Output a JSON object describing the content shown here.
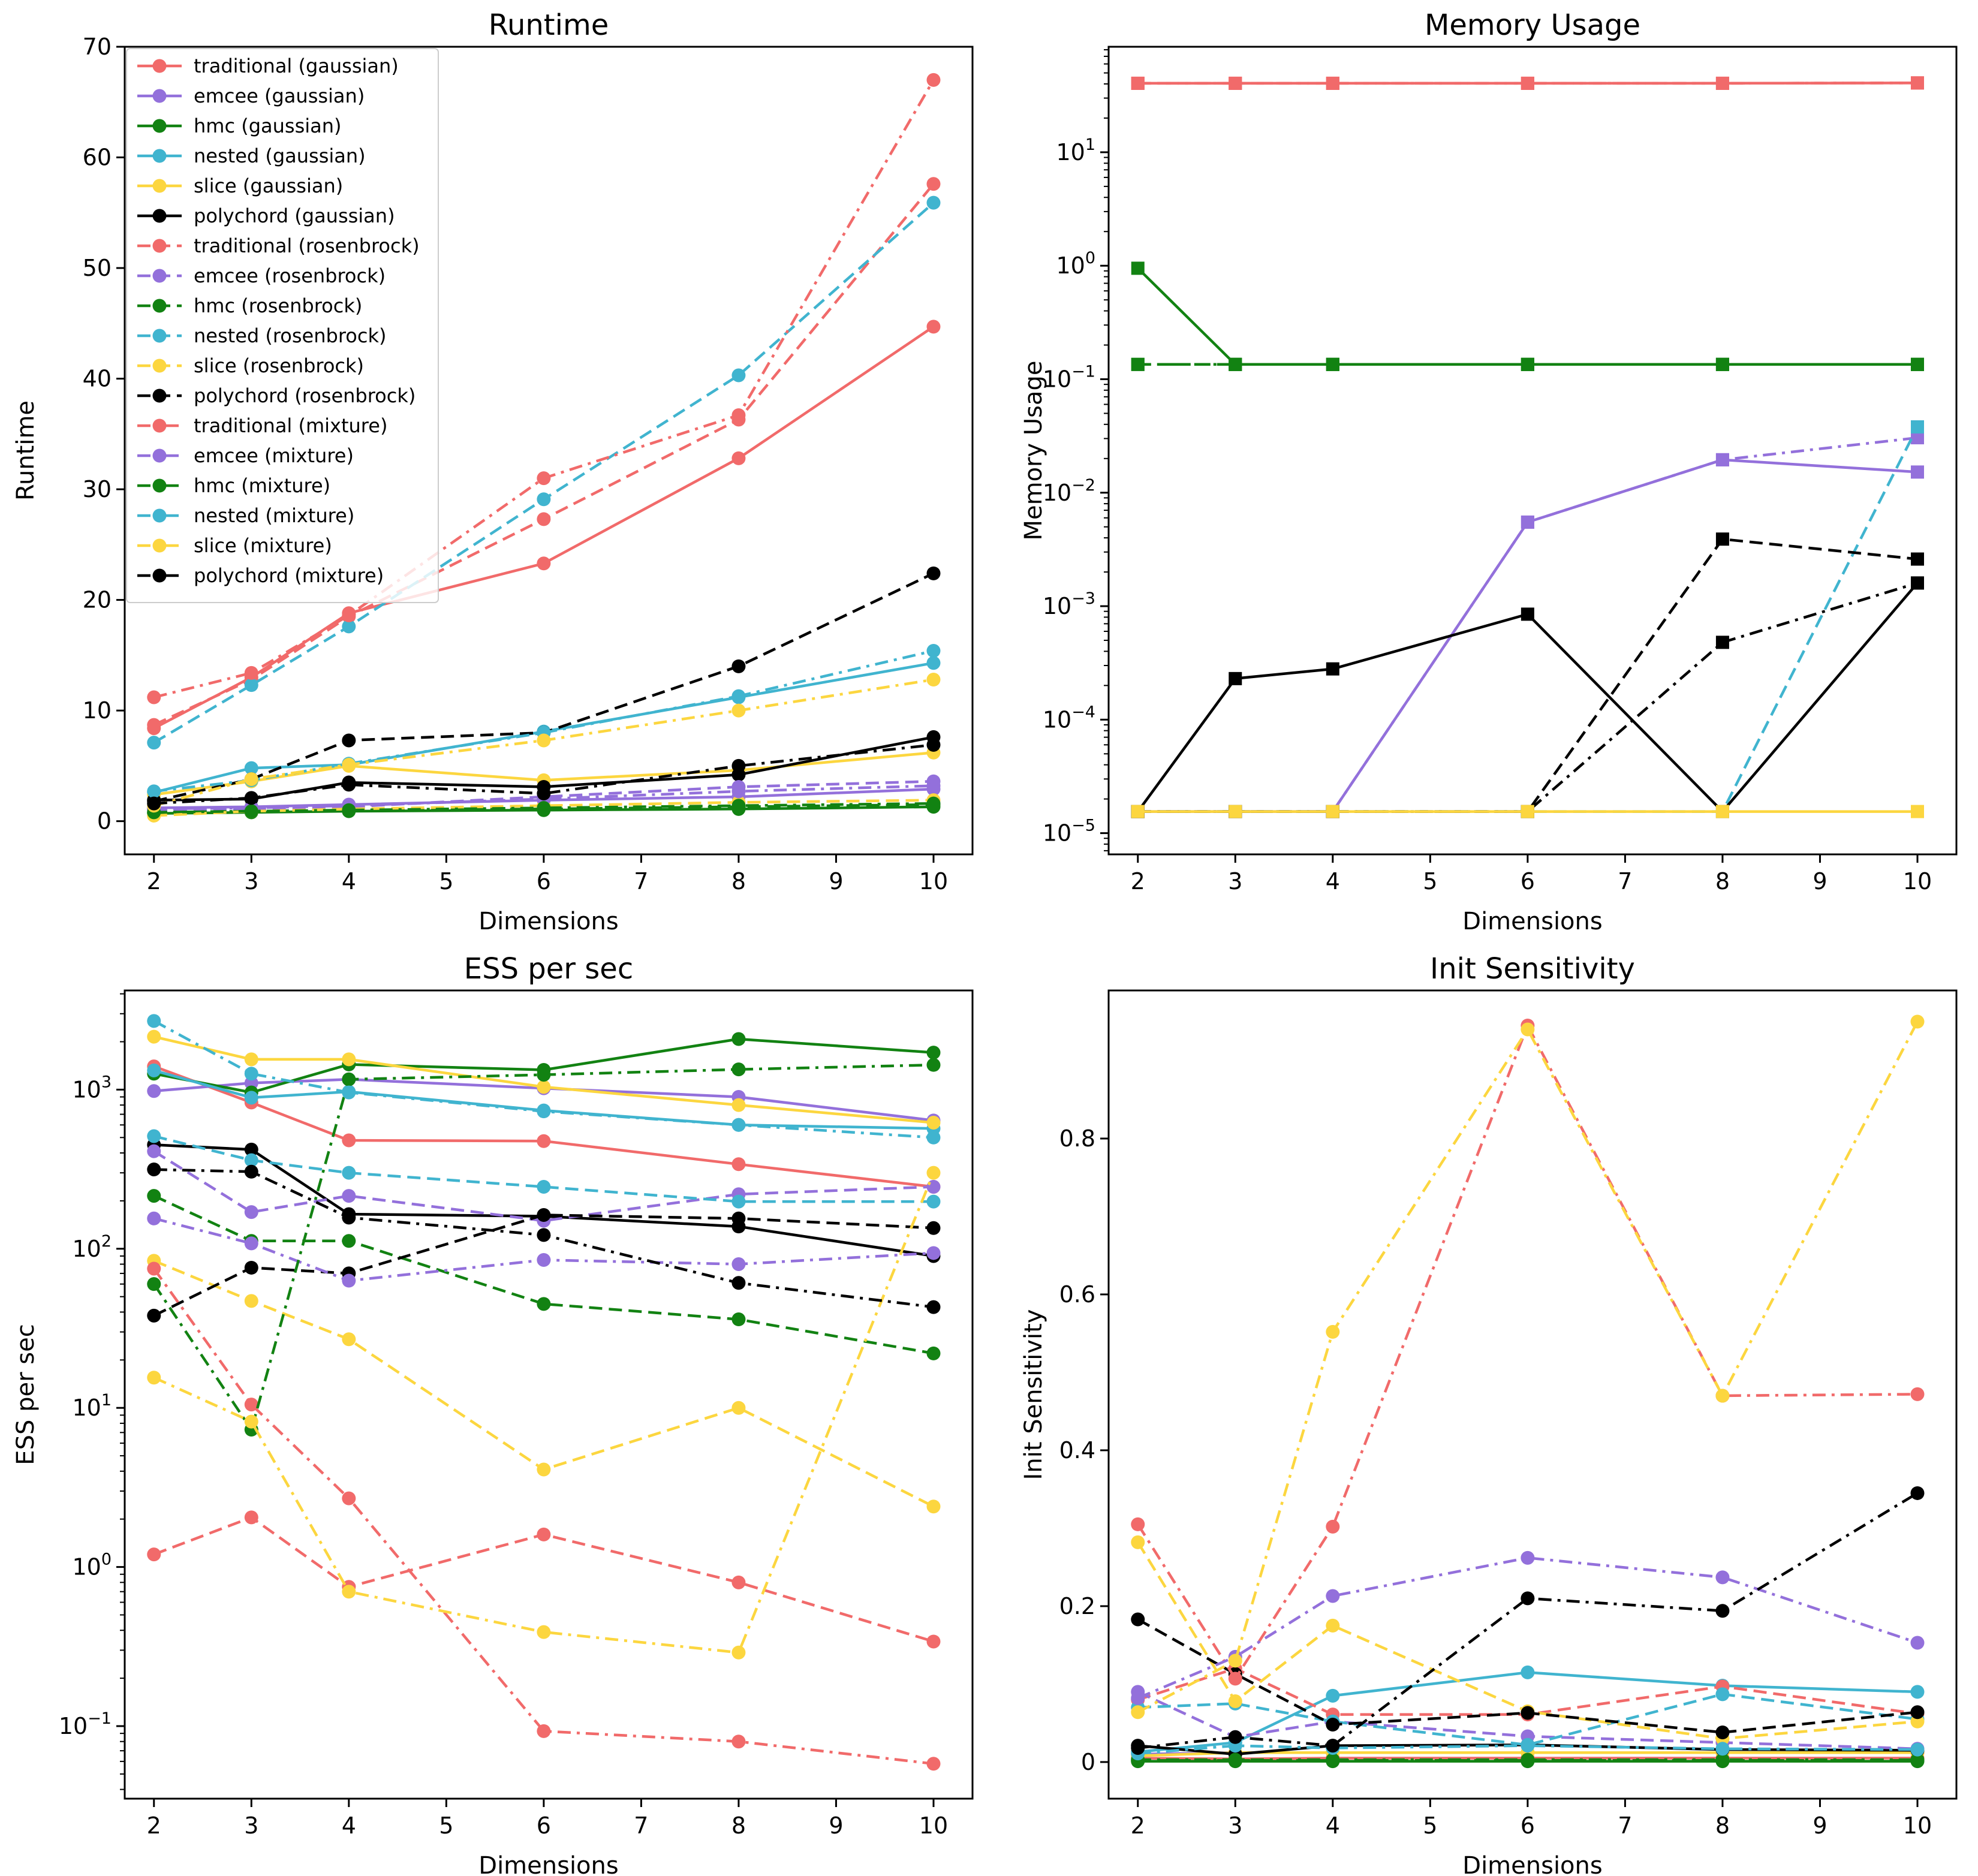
{
  "figure": {
    "background": "#ffffff"
  },
  "colors": {
    "traditional": "#f16a6a",
    "emcee": "#9370db",
    "hmc": "#128212",
    "nested": "#40b4cf",
    "slice": "#fcd63f",
    "polychord": "#000000"
  },
  "chart_data": [
    {
      "type": "line",
      "title": "Runtime",
      "xlabel": "Dimensions",
      "ylabel": "Runtime",
      "yscale": "linear",
      "xlim": [
        1.7,
        10.4
      ],
      "ylim": [
        -3,
        70
      ],
      "xticks": [
        2,
        3,
        4,
        5,
        6,
        7,
        8,
        9,
        10
      ],
      "yticks": [
        0,
        10,
        20,
        30,
        40,
        50,
        60,
        70
      ],
      "legend": "top-left",
      "x": [
        2,
        3,
        4,
        6,
        8,
        10
      ],
      "series": [
        {
          "name": "traditional (gaussian)",
          "values": [
            8.4,
            13.0,
            18.8,
            23.3,
            32.8,
            44.7
          ]
        },
        {
          "name": "emcee (gaussian)",
          "values": [
            1.2,
            1.3,
            1.5,
            1.9,
            2.2,
            2.9
          ]
        },
        {
          "name": "hmc (gaussian)",
          "values": [
            0.7,
            0.8,
            0.9,
            1.0,
            1.1,
            1.3
          ]
        },
        {
          "name": "nested (gaussian)",
          "values": [
            2.6,
            4.8,
            5.1,
            8.1,
            11.2,
            14.3
          ]
        },
        {
          "name": "slice (gaussian)",
          "values": [
            2.4,
            3.6,
            5.0,
            3.7,
            4.6,
            6.2
          ]
        },
        {
          "name": "polychord (gaussian)",
          "values": [
            1.9,
            2.0,
            3.5,
            3.1,
            4.2,
            7.6
          ]
        },
        {
          "name": "traditional (rosenbrock)",
          "values": [
            8.7,
            12.8,
            18.5,
            27.3,
            36.3,
            57.6
          ]
        },
        {
          "name": "emcee (rosenbrock)",
          "values": [
            1.0,
            1.1,
            1.3,
            2.2,
            3.1,
            3.6
          ]
        },
        {
          "name": "hmc (rosenbrock)",
          "values": [
            0.8,
            0.9,
            1.0,
            1.1,
            1.3,
            1.5
          ]
        },
        {
          "name": "nested (rosenbrock)",
          "values": [
            7.1,
            12.3,
            17.6,
            29.1,
            40.3,
            55.9
          ]
        },
        {
          "name": "slice (rosenbrock)",
          "values": [
            0.5,
            0.9,
            1.1,
            1.4,
            1.7,
            1.9
          ]
        },
        {
          "name": "polychord (rosenbrock)",
          "values": [
            1.8,
            3.8,
            7.3,
            8.0,
            14.0,
            22.4
          ]
        },
        {
          "name": "traditional (mixture)",
          "values": [
            11.2,
            13.4,
            18.6,
            31.0,
            36.7,
            67.0
          ]
        },
        {
          "name": "emcee (mixture)",
          "values": [
            1.1,
            1.2,
            1.4,
            2.0,
            2.7,
            3.2
          ]
        },
        {
          "name": "hmc (mixture)",
          "values": [
            0.8,
            0.9,
            1.0,
            1.2,
            1.4,
            1.6
          ]
        },
        {
          "name": "nested (mixture)",
          "values": [
            2.7,
            3.7,
            5.2,
            8.0,
            11.3,
            15.4
          ]
        },
        {
          "name": "slice (mixture)",
          "values": [
            1.4,
            3.8,
            5.1,
            7.3,
            10.0,
            12.8
          ]
        },
        {
          "name": "polychord (mixture)",
          "values": [
            1.6,
            2.1,
            3.3,
            2.5,
            5.0,
            6.9
          ]
        }
      ]
    },
    {
      "type": "line",
      "title": "Memory Usage",
      "xlabel": "Dimensions",
      "ylabel": "Memory Usage",
      "yscale": "log",
      "xlim": [
        1.7,
        10.4
      ],
      "ylim": [
        6.5e-06,
        85
      ],
      "xticks": [
        2,
        3,
        4,
        5,
        6,
        7,
        8,
        9,
        10
      ],
      "ytick_exponents": [
        -5,
        -4,
        -3,
        -2,
        -1,
        0,
        1
      ],
      "x": [
        2,
        3,
        4,
        6,
        8,
        10
      ],
      "series": [
        {
          "name": "traditional (gaussian)",
          "values": [
            40.5,
            40.5,
            40.5,
            40.5,
            40.5,
            40.8
          ]
        },
        {
          "name": "traditional (rosenbrock)",
          "values": [
            40.5,
            40.5,
            40.5,
            40.5,
            40.5,
            40.8
          ]
        },
        {
          "name": "traditional (mixture)",
          "values": [
            40.5,
            40.5,
            40.5,
            40.5,
            40.5,
            40.8
          ]
        },
        {
          "name": "hmc (gaussian)",
          "values": [
            0.95,
            0.135,
            0.135,
            0.135,
            0.135,
            0.135
          ]
        },
        {
          "name": "hmc (rosenbrock)",
          "values": [
            0.135,
            0.135,
            0.135,
            0.135,
            0.135,
            0.135
          ]
        },
        {
          "name": "hmc (mixture)",
          "values": [
            0.135,
            0.135,
            0.135,
            0.135,
            0.135,
            0.135
          ]
        },
        {
          "name": "emcee (gaussian)",
          "values": [
            1.55e-05,
            1.55e-05,
            1.55e-05,
            0.0055,
            0.0195,
            0.0152
          ]
        },
        {
          "name": "emcee (mixture)",
          "values": [
            1.55e-05,
            1.55e-05,
            1.55e-05,
            0.0055,
            0.0195,
            0.0305
          ]
        },
        {
          "name": "nested (rosenbrock)",
          "values": [
            1.55e-05,
            1.55e-05,
            1.55e-05,
            1.55e-05,
            1.55e-05,
            0.038
          ]
        },
        {
          "name": "polychord (gaussian)",
          "values": [
            1.55e-05,
            0.00023,
            0.00028,
            0.00085,
            1.55e-05,
            0.0016
          ]
        },
        {
          "name": "polychord (rosenbrock)",
          "values": [
            1.55e-05,
            1.55e-05,
            1.55e-05,
            1.55e-05,
            0.0039,
            0.0026
          ]
        },
        {
          "name": "polychord (mixture)",
          "values": [
            1.55e-05,
            1.55e-05,
            1.55e-05,
            1.55e-05,
            0.00048,
            0.0016
          ]
        },
        {
          "name": "slice (gaussian)",
          "values": [
            1.55e-05,
            1.55e-05,
            1.55e-05,
            1.55e-05,
            1.55e-05,
            1.55e-05
          ]
        }
      ]
    },
    {
      "type": "line",
      "title": "ESS per sec",
      "xlabel": "Dimensions",
      "ylabel": "ESS per sec",
      "yscale": "log",
      "xlim": [
        1.7,
        10.4
      ],
      "ylim": [
        0.035,
        4200
      ],
      "xticks": [
        2,
        3,
        4,
        5,
        6,
        7,
        8,
        9,
        10
      ],
      "ytick_exponents": [
        -1,
        0,
        1,
        2,
        3
      ],
      "x": [
        2,
        3,
        4,
        6,
        8,
        10
      ],
      "series": [
        {
          "name": "traditional (gaussian)",
          "values": [
            1400,
            830,
            480,
            475,
            340,
            245
          ]
        },
        {
          "name": "emcee (gaussian)",
          "values": [
            980,
            1100,
            1160,
            1020,
            900,
            640
          ]
        },
        {
          "name": "hmc (gaussian)",
          "values": [
            1260,
            960,
            1440,
            1330,
            2080,
            1710
          ]
        },
        {
          "name": "nested (gaussian)",
          "values": [
            1320,
            890,
            970,
            740,
            600,
            570
          ]
        },
        {
          "name": "slice (gaussian)",
          "values": [
            2150,
            1550,
            1550,
            1040,
            800,
            620
          ]
        },
        {
          "name": "polychord (gaussian)",
          "values": [
            450,
            420,
            165,
            160,
            138,
            90
          ]
        },
        {
          "name": "traditional (rosenbrock)",
          "values": [
            1.2,
            2.05,
            0.75,
            1.6,
            0.8,
            0.34
          ]
        },
        {
          "name": "emcee (rosenbrock)",
          "values": [
            410,
            170,
            215,
            150,
            220,
            245
          ]
        },
        {
          "name": "hmc (rosenbrock)",
          "values": [
            215,
            112,
            112,
            45,
            36,
            22
          ]
        },
        {
          "name": "nested (rosenbrock)",
          "values": [
            510,
            360,
            300,
            245,
            198,
            198
          ]
        },
        {
          "name": "slice (rosenbrock)",
          "values": [
            84,
            47,
            27,
            4.1,
            10,
            2.4
          ]
        },
        {
          "name": "polychord (rosenbrock)",
          "values": [
            38,
            76,
            70,
            163,
            155,
            135
          ]
        },
        {
          "name": "traditional (mixture)",
          "values": [
            75,
            10.5,
            2.7,
            0.093,
            0.08,
            0.058
          ]
        },
        {
          "name": "emcee (mixture)",
          "values": [
            155,
            108,
            63,
            85,
            80,
            94
          ]
        },
        {
          "name": "hmc (mixture)",
          "values": [
            60,
            7.3,
            1160,
            1240,
            1340,
            1430
          ]
        },
        {
          "name": "nested (mixture)",
          "values": [
            2700,
            1260,
            960,
            730,
            600,
            500
          ]
        },
        {
          "name": "slice (mixture)",
          "values": [
            15.5,
            8.2,
            0.7,
            0.39,
            0.29,
            300
          ]
        },
        {
          "name": "polychord (mixture)",
          "values": [
            315,
            305,
            157,
            122,
            61,
            43
          ]
        }
      ]
    },
    {
      "type": "line",
      "title": "Init Sensitivity",
      "xlabel": "Dimensions",
      "ylabel": "Init Sensitivity",
      "yscale": "linear",
      "xlim": [
        1.7,
        10.4
      ],
      "ylim": [
        -0.047,
        0.99
      ],
      "xticks": [
        2,
        3,
        4,
        5,
        6,
        7,
        8,
        9,
        10
      ],
      "yticks": [
        0.0,
        0.2,
        0.4,
        0.6,
        0.8
      ],
      "x": [
        2,
        3,
        4,
        6,
        8,
        10
      ],
      "series": [
        {
          "name": "traditional (gaussian)",
          "values": [
            0.005,
            0.004,
            0.005,
            0.005,
            0.005,
            0.005
          ]
        },
        {
          "name": "emcee (gaussian)",
          "values": [
            0.01,
            0.012,
            0.012,
            0.012,
            0.012,
            0.012
          ]
        },
        {
          "name": "hmc (gaussian)",
          "values": [
            0.001,
            0.001,
            0.001,
            0.001,
            0.001,
            0.001
          ]
        },
        {
          "name": "nested (gaussian)",
          "values": [
            0.013,
            0.025,
            0.085,
            0.115,
            0.098,
            0.09
          ]
        },
        {
          "name": "slice (gaussian)",
          "values": [
            0.008,
            0.012,
            0.012,
            0.012,
            0.012,
            0.012
          ]
        },
        {
          "name": "polychord (gaussian)",
          "values": [
            0.021,
            0.01,
            0.021,
            0.022,
            0.016,
            0.015
          ]
        },
        {
          "name": "traditional (rosenbrock)",
          "values": [
            0.08,
            0.12,
            0.061,
            0.061,
            0.097,
            0.062
          ]
        },
        {
          "name": "emcee (rosenbrock)",
          "values": [
            0.09,
            0.032,
            0.052,
            0.033,
            0.025,
            0.017
          ]
        },
        {
          "name": "hmc (rosenbrock)",
          "values": [
            0.002,
            0.002,
            0.002,
            0.002,
            0.002,
            0.002
          ]
        },
        {
          "name": "nested (rosenbrock)",
          "values": [
            0.07,
            0.075,
            0.052,
            0.022,
            0.087,
            0.055
          ]
        },
        {
          "name": "slice (rosenbrock)",
          "values": [
            0.282,
            0.078,
            0.175,
            0.065,
            0.03,
            0.052
          ]
        },
        {
          "name": "polychord (rosenbrock)",
          "values": [
            0.183,
            0.113,
            0.048,
            0.063,
            0.038,
            0.064
          ]
        },
        {
          "name": "traditional (mixture)",
          "values": [
            0.305,
            0.107,
            0.302,
            0.945,
            0.47,
            0.472
          ]
        },
        {
          "name": "emcee (mixture)",
          "values": [
            0.082,
            0.135,
            0.213,
            0.262,
            0.237,
            0.153
          ]
        },
        {
          "name": "hmc (mixture)",
          "values": [
            0.003,
            0.003,
            0.003,
            0.003,
            0.003,
            0.003
          ]
        },
        {
          "name": "nested (mixture)",
          "values": [
            0.011,
            0.021,
            0.018,
            0.021,
            0.017,
            0.016
          ]
        },
        {
          "name": "slice (mixture)",
          "values": [
            0.064,
            0.13,
            0.552,
            0.94,
            0.47,
            0.95
          ]
        },
        {
          "name": "polychord (mixture)",
          "values": [
            0.018,
            0.032,
            0.021,
            0.21,
            0.194,
            0.345
          ]
        }
      ]
    }
  ]
}
